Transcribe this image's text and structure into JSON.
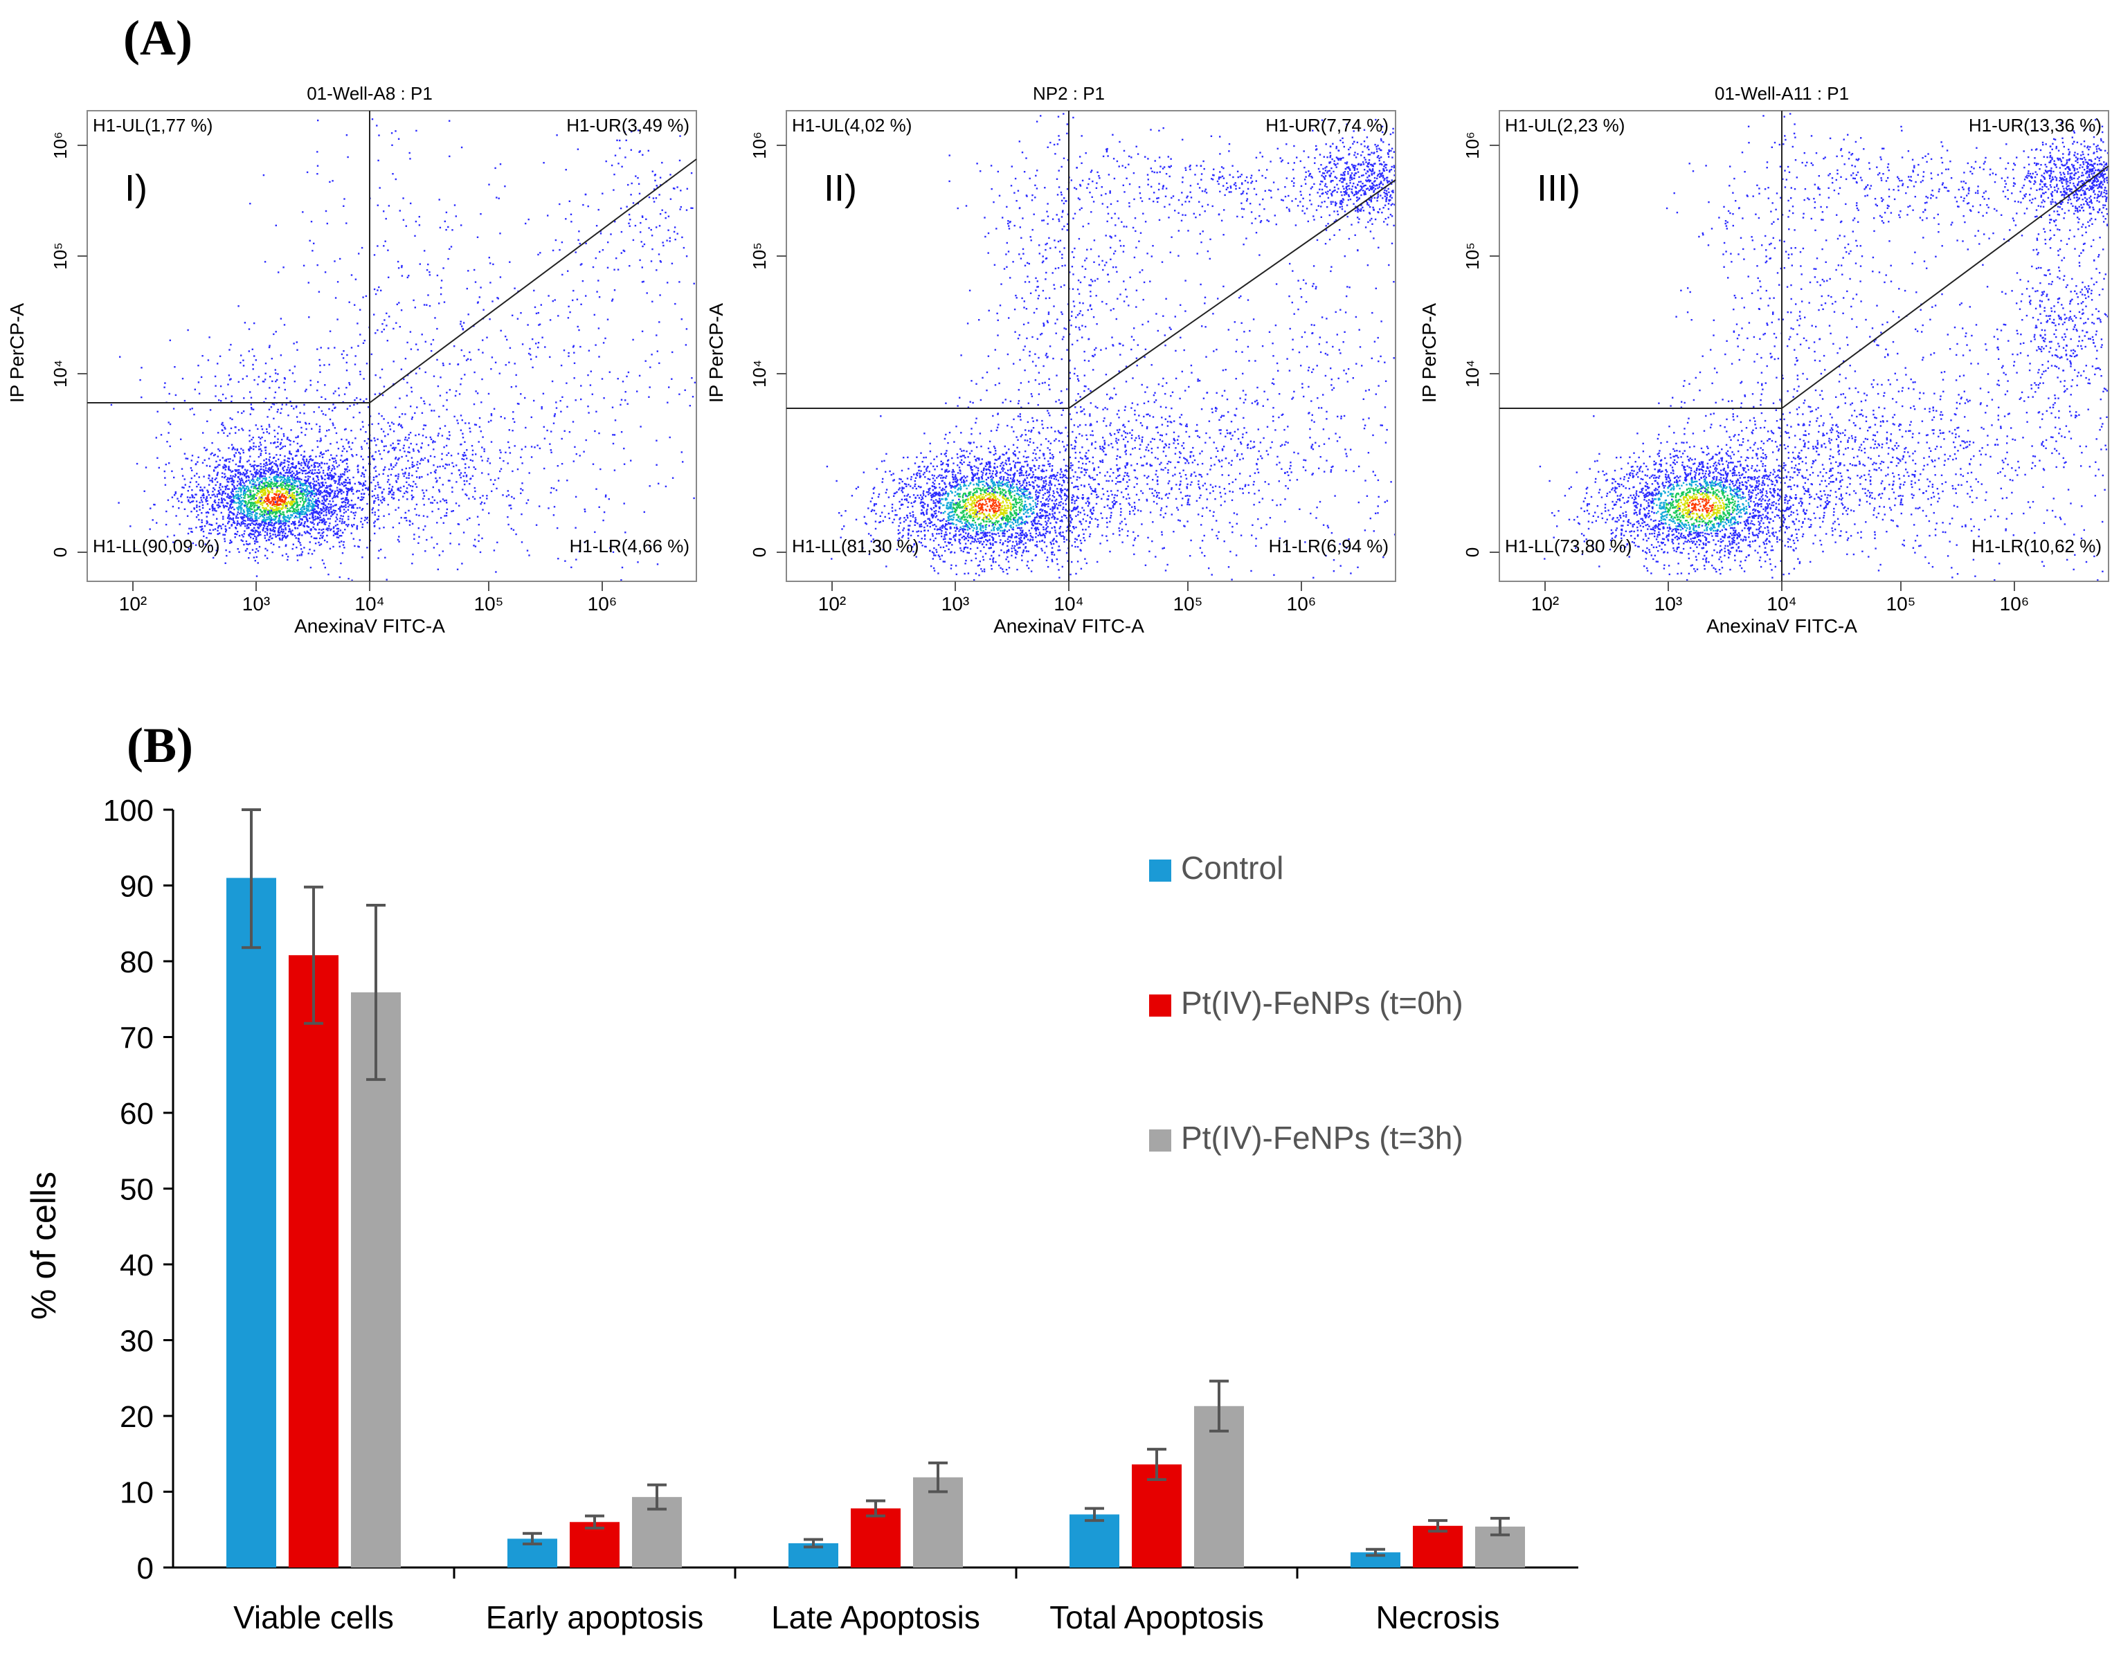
{
  "panel_labels": {
    "a": "(A)",
    "b": "(B)"
  },
  "flow_plots": [
    {
      "title": "01-Well-A8 : P1",
      "roman": "I)",
      "quadrants": {
        "ul": "H1-UL(1,77 %)",
        "ur": "H1-UR(3,49 %)",
        "ll": "H1-LL(90,09 %)",
        "lr": "H1-LR(4,66 %)"
      },
      "xlabel": "AnexinaV FITC-A",
      "ylabel": "IP PerCP-A",
      "x_ticks": [
        "10²",
        "10³",
        "10⁴",
        "10⁵",
        "10⁶"
      ],
      "y_ticks": [
        "0",
        "10⁴",
        "10⁵",
        "10⁶"
      ]
    },
    {
      "title": "NP2 : P1",
      "roman": "II)",
      "quadrants": {
        "ul": "H1-UL(4,02 %)",
        "ur": "H1-UR(7,74 %)",
        "ll": "H1-LL(81,30 %)",
        "lr": "H1-LR(6,94 %)"
      },
      "xlabel": "AnexinaV FITC-A",
      "ylabel": "IP PerCP-A",
      "x_ticks": [
        "10²",
        "10³",
        "10⁴",
        "10⁵",
        "10⁶"
      ],
      "y_ticks": [
        "0",
        "10⁴",
        "10⁵",
        "10⁶"
      ]
    },
    {
      "title": "01-Well-A11 : P1",
      "roman": "III)",
      "quadrants": {
        "ul": "H1-UL(2,23 %)",
        "ur": "H1-UR(13,36 %)",
        "ll": "H1-LL(73,80 %)",
        "lr": "H1-LR(10,62 %)"
      },
      "xlabel": "AnexinaV FITC-A",
      "ylabel": "IP PerCP-A",
      "x_ticks": [
        "10²",
        "10³",
        "10⁴",
        "10⁵",
        "10⁶"
      ],
      "y_ticks": [
        "0",
        "10⁴",
        "10⁵",
        "10⁶"
      ]
    }
  ],
  "chart_data": {
    "type": "bar",
    "title": "",
    "xlabel": "",
    "ylabel": "% of cells",
    "ylim": [
      0,
      100
    ],
    "yticks": [
      0,
      10,
      20,
      30,
      40,
      50,
      60,
      70,
      80,
      90,
      100
    ],
    "categories": [
      "Viable cells",
      "Early apoptosis",
      "Late Apoptosis",
      "Total Apoptosis",
      "Necrosis"
    ],
    "series": [
      {
        "name": "Control",
        "color": "#1B9AD6",
        "values": [
          91,
          3.8,
          3.2,
          7,
          2
        ],
        "errors": [
          9.2,
          0.7,
          0.5,
          0.8,
          0.4
        ]
      },
      {
        "name": "Pt(IV)-FeNPs (t=0h)",
        "color": "#E60000",
        "values": [
          80.8,
          6,
          7.8,
          13.6,
          5.5
        ],
        "errors": [
          9,
          0.8,
          1,
          2,
          0.7
        ]
      },
      {
        "name": "Pt(IV)-FeNPs (t=3h)",
        "color": "#A6A6A6",
        "values": [
          75.9,
          9.3,
          11.9,
          21.3,
          5.4
        ],
        "errors": [
          11.5,
          1.6,
          1.9,
          3.3,
          1.1
        ]
      }
    ],
    "legend_position": "right"
  }
}
